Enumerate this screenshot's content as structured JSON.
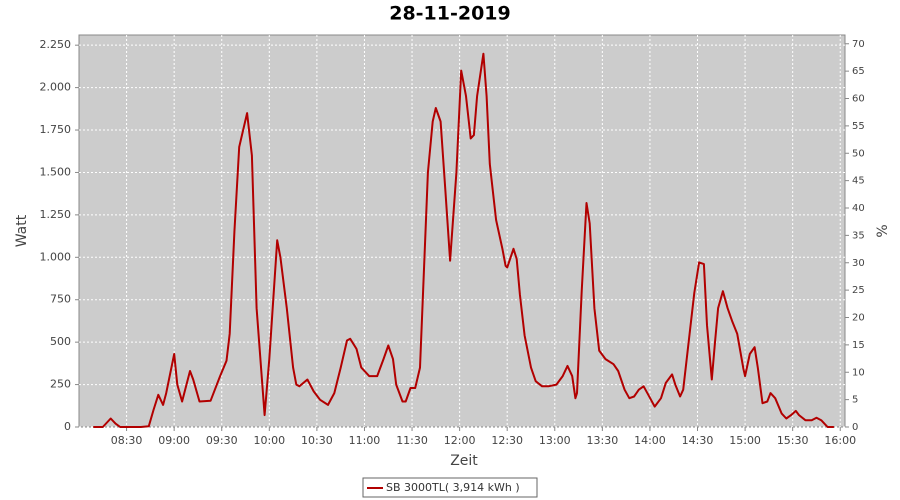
{
  "chart_data": {
    "type": "line",
    "title": "28-11-2019",
    "x_label": "Zeit",
    "y_label": "Watt",
    "y2_label": "%",
    "xlim": [
      "08:00",
      "16:03"
    ],
    "xticks": [
      "08:30",
      "09:00",
      "09:30",
      "10:00",
      "10:30",
      "11:00",
      "11:30",
      "12:00",
      "12:30",
      "13:00",
      "13:30",
      "14:00",
      "14:30",
      "15:00",
      "15:30",
      "16:00"
    ],
    "ylim": [
      0,
      2310
    ],
    "yticks": [
      0,
      250,
      500,
      750,
      {
        "value": 1000,
        "label": "1.000"
      },
      {
        "value": 1250,
        "label": "1.250"
      },
      {
        "value": 1500,
        "label": "1.500"
      },
      {
        "value": 1750,
        "label": "1.750"
      },
      {
        "value": 2000,
        "label": "2.000"
      },
      {
        "value": 2250,
        "label": "2.250"
      }
    ],
    "y2lim": [
      0,
      71.6
    ],
    "y2ticks": [
      0,
      5,
      10,
      15,
      20,
      25,
      30,
      35,
      40,
      45,
      50,
      55,
      60,
      65,
      70
    ],
    "grid": true,
    "legend_position": "bottom",
    "x": [
      "08:09",
      "08:15",
      "08:20",
      "08:23",
      "08:26",
      "08:39",
      "08:44",
      "08:47",
      "08:50",
      "08:53",
      "08:55",
      "09:00",
      "09:02",
      "09:05",
      "09:10",
      "09:12",
      "09:16",
      "09:23",
      "09:29",
      "09:33",
      "09:35",
      "09:38",
      "09:41",
      "09:46",
      "09:49",
      "09:52",
      "09:57",
      "10:00",
      "10:05",
      "10:07",
      "10:11",
      "10:15",
      "10:17",
      "10:19",
      "10:24",
      "10:28",
      "10:32",
      "10:37",
      "10:41",
      "10:45",
      "10:49",
      "10:51",
      "10:55",
      "10:58",
      "11:03",
      "11:08",
      "11:12",
      "11:15",
      "11:18",
      "11:20",
      "11:24",
      "11:26",
      "11:29",
      "11:32",
      "11:35",
      "11:37",
      "11:40",
      "11:43",
      "11:45",
      "11:48",
      "11:51",
      "11:54",
      "11:58",
      "12:01",
      "12:04",
      "12:07",
      "12:09",
      "12:11",
      "12:15",
      "12:17",
      "12:19",
      "12:23",
      "12:27",
      "12:29",
      "12:30",
      "12:34",
      "12:36",
      "12:38",
      "12:41",
      "12:45",
      "12:48",
      "12:52",
      "12:56",
      "13:01",
      "13:05",
      "13:08",
      "13:11",
      "13:13",
      "13:14",
      "13:17",
      "13:20",
      "13:22",
      "13:25",
      "13:28",
      "13:32",
      "13:37",
      "13:40",
      "13:44",
      "13:47",
      "13:50",
      "13:53",
      "13:56",
      "13:59",
      "14:03",
      "14:07",
      "14:10",
      "14:14",
      "14:16",
      "14:19",
      "14:21",
      "14:25",
      "14:28",
      "14:31",
      "14:34",
      "14:36",
      "14:39",
      "14:41",
      "14:43",
      "14:46",
      "14:49",
      "14:52",
      "14:55",
      "14:59",
      "15:00",
      "15:03",
      "15:06",
      "15:08",
      "15:11",
      "15:14",
      "15:16",
      "15:19",
      "15:23",
      "15:26",
      "15:29",
      "15:32",
      "15:34",
      "15:38",
      "15:42",
      "15:45",
      "15:48",
      "15:52",
      "15:56"
    ],
    "series": [
      {
        "name": "SB 3000TL( 3,914 kWh )",
        "color": "#b20000",
        "values": [
          0,
          0,
          50,
          20,
          0,
          0,
          5,
          100,
          190,
          130,
          200,
          430,
          250,
          150,
          330,
          280,
          150,
          155,
          300,
          390,
          550,
          1150,
          1650,
          1850,
          1600,
          700,
          70,
          400,
          1100,
          1000,
          700,
          350,
          250,
          240,
          280,
          210,
          160,
          130,
          200,
          350,
          510,
          520,
          460,
          350,
          300,
          300,
          400,
          480,
          400,
          250,
          150,
          150,
          230,
          230,
          350,
          800,
          1500,
          1800,
          1880,
          1800,
          1400,
          980,
          1500,
          2100,
          1950,
          1700,
          1720,
          1950,
          2200,
          1950,
          1550,
          1220,
          1050,
          950,
          940,
          1050,
          990,
          780,
          540,
          350,
          270,
          240,
          240,
          250,
          300,
          360,
          300,
          170,
          200,
          800,
          1320,
          1200,
          700,
          450,
          400,
          370,
          330,
          220,
          170,
          180,
          220,
          240,
          190,
          120,
          170,
          260,
          310,
          250,
          180,
          220,
          550,
          790,
          970,
          960,
          600,
          280,
          500,
          700,
          800,
          700,
          620,
          550,
          340,
          300,
          430,
          470,
          350,
          140,
          150,
          200,
          170,
          80,
          50,
          70,
          95,
          70,
          40,
          40,
          55,
          40,
          0,
          0
        ]
      }
    ]
  }
}
